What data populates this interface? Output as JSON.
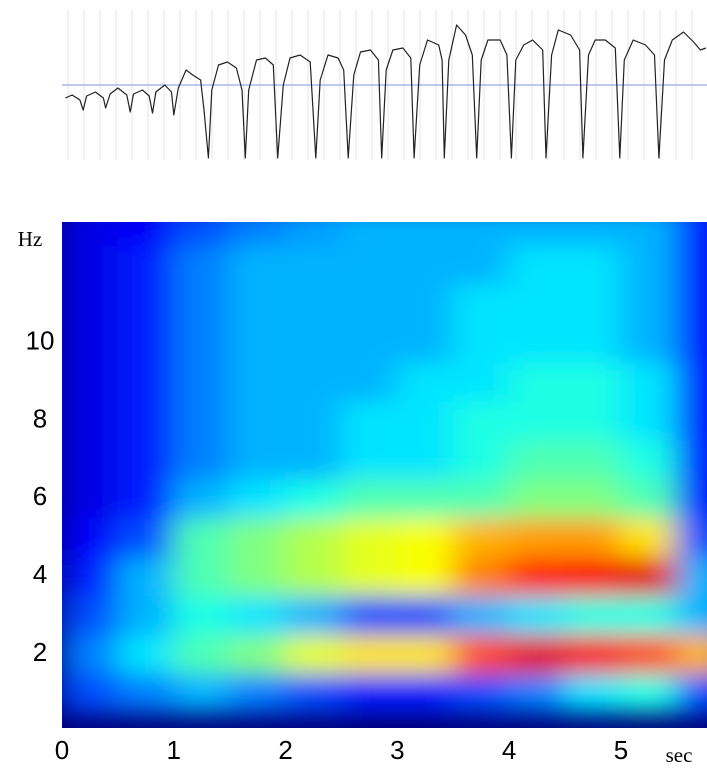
{
  "chart_data": [
    {
      "type": "line",
      "color": "#222222",
      "baseline": 0,
      "baseline_color": "#9fa8e8",
      "xlim": [
        0,
        5.77
      ],
      "ylim": [
        -75,
        75
      ],
      "x": [
        0.03,
        0.09,
        0.16,
        0.19,
        0.22,
        0.3,
        0.37,
        0.39,
        0.43,
        0.5,
        0.58,
        0.61,
        0.64,
        0.72,
        0.78,
        0.81,
        0.84,
        0.92,
        0.98,
        1.0,
        1.04,
        1.11,
        1.17,
        1.24,
        1.27,
        1.31,
        1.34,
        1.4,
        1.48,
        1.56,
        1.61,
        1.64,
        1.67,
        1.74,
        1.82,
        1.89,
        1.93,
        1.98,
        2.04,
        2.13,
        2.22,
        2.27,
        2.31,
        2.38,
        2.47,
        2.52,
        2.56,
        2.61,
        2.67,
        2.76,
        2.83,
        2.86,
        2.9,
        2.96,
        3.05,
        3.12,
        3.15,
        3.2,
        3.27,
        3.37,
        3.4,
        3.42,
        3.46,
        3.53,
        3.61,
        3.67,
        3.71,
        3.75,
        3.81,
        3.92,
        3.98,
        4.02,
        4.06,
        4.13,
        4.21,
        4.3,
        4.33,
        4.38,
        4.44,
        4.55,
        4.63,
        4.66,
        4.71,
        4.77,
        4.86,
        4.95,
        4.99,
        5.03,
        5.11,
        5.22,
        5.3,
        5.34,
        5.39,
        5.46,
        5.56,
        5.65,
        5.71,
        5.76
      ],
      "values": [
        -13,
        -10,
        -15,
        -25,
        -11,
        -7,
        -13,
        -23,
        -9,
        -3,
        -10,
        -27,
        -9,
        -5,
        -11,
        -28,
        -7,
        0,
        -7,
        -30,
        -3,
        15,
        10,
        5,
        -25,
        -73,
        -5,
        20,
        23,
        17,
        -5,
        -73,
        -5,
        25,
        27,
        20,
        -73,
        0,
        27,
        30,
        23,
        -73,
        5,
        30,
        27,
        15,
        -73,
        10,
        33,
        35,
        25,
        -73,
        15,
        35,
        37,
        27,
        -73,
        20,
        45,
        40,
        25,
        -73,
        25,
        60,
        50,
        30,
        -73,
        25,
        45,
        45,
        30,
        -73,
        25,
        40,
        45,
        35,
        -73,
        30,
        55,
        50,
        35,
        -73,
        30,
        45,
        45,
        37,
        -73,
        25,
        45,
        40,
        30,
        -73,
        25,
        45,
        53,
        43,
        35,
        37
      ]
    },
    {
      "type": "heatmap",
      "colorscale": "jet",
      "xlabel": "sec",
      "ylabel": "Hz",
      "xlim": [
        0,
        5.77
      ],
      "ylim": [
        0.1,
        13.1
      ],
      "xticks": [
        0,
        1,
        2,
        3,
        4,
        5
      ],
      "yticks": [
        2,
        4,
        6,
        8,
        10
      ],
      "x": [
        0.25,
        0.75,
        1.25,
        1.75,
        2.25,
        2.75,
        3.25,
        3.75,
        4.25,
        4.75,
        5.25,
        5.75
      ],
      "y": [
        1,
        2,
        3,
        4,
        5,
        6,
        7,
        8,
        9,
        10,
        11,
        12,
        13
      ],
      "z": [
        [
          0.2,
          0.25,
          0.2,
          0.15,
          0.12,
          0.1,
          0.1,
          0.1,
          0.1,
          0.1,
          0.1,
          0.1,
          0.1
        ],
        [
          0.25,
          0.35,
          0.3,
          0.3,
          0.2,
          0.15,
          0.15,
          0.15,
          0.15,
          0.15,
          0.15,
          0.15,
          0.12
        ],
        [
          0.3,
          0.45,
          0.4,
          0.45,
          0.45,
          0.3,
          0.25,
          0.25,
          0.25,
          0.25,
          0.25,
          0.25,
          0.2
        ],
        [
          0.25,
          0.5,
          0.35,
          0.5,
          0.5,
          0.35,
          0.3,
          0.3,
          0.3,
          0.3,
          0.3,
          0.3,
          0.25
        ],
        [
          0.2,
          0.6,
          0.3,
          0.55,
          0.55,
          0.4,
          0.3,
          0.3,
          0.3,
          0.3,
          0.3,
          0.3,
          0.28
        ],
        [
          0.15,
          0.65,
          0.2,
          0.6,
          0.6,
          0.45,
          0.35,
          0.35,
          0.3,
          0.3,
          0.3,
          0.3,
          0.3
        ],
        [
          0.15,
          0.65,
          0.2,
          0.62,
          0.62,
          0.45,
          0.35,
          0.35,
          0.35,
          0.3,
          0.3,
          0.3,
          0.3
        ],
        [
          0.2,
          0.8,
          0.3,
          0.75,
          0.7,
          0.45,
          0.4,
          0.4,
          0.35,
          0.35,
          0.35,
          0.3,
          0.3
        ],
        [
          0.25,
          0.9,
          0.35,
          0.85,
          0.72,
          0.5,
          0.45,
          0.4,
          0.4,
          0.35,
          0.35,
          0.35,
          0.3
        ],
        [
          0.35,
          0.88,
          0.4,
          0.88,
          0.72,
          0.5,
          0.45,
          0.4,
          0.4,
          0.35,
          0.35,
          0.35,
          0.3
        ],
        [
          0.4,
          0.8,
          0.4,
          0.9,
          0.65,
          0.45,
          0.4,
          0.35,
          0.35,
          0.3,
          0.3,
          0.3,
          0.3
        ],
        [
          0.2,
          0.7,
          0.3,
          0.3,
          0.2,
          0.15,
          0.15,
          0.15,
          0.15,
          0.15,
          0.15,
          0.15,
          0.15
        ]
      ]
    }
  ]
}
